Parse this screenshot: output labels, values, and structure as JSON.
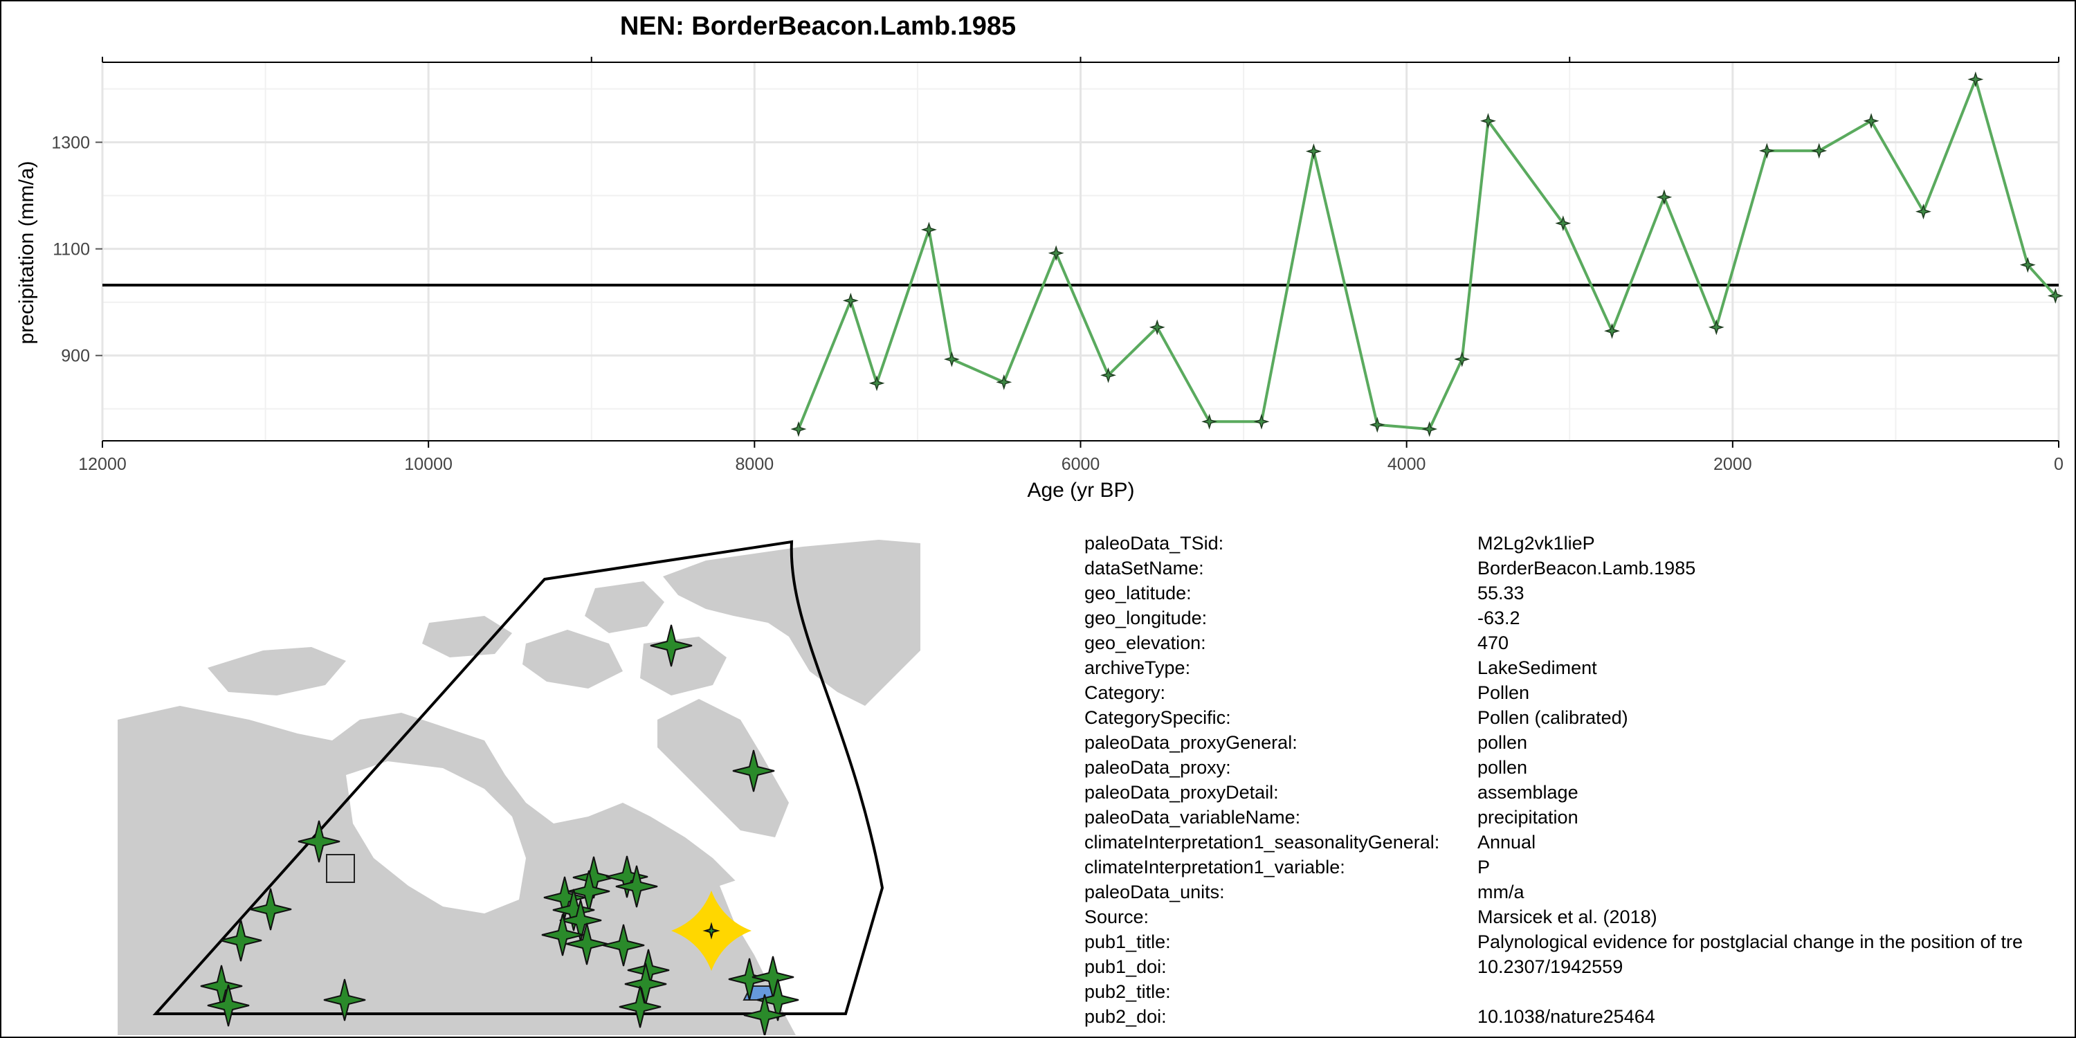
{
  "title": "NEN: BorderBeacon.Lamb.1985",
  "chart_data": {
    "type": "line",
    "title": "NEN: BorderBeacon.Lamb.1985",
    "xlabel": "Age (yr BP)",
    "ylabel": "precipitation (mm/a)",
    "xlim": [
      12000,
      0
    ],
    "x_reversed": true,
    "ylim": [
      740,
      1450
    ],
    "xticks": [
      "12000",
      "10000",
      "8000",
      "6000",
      "4000",
      "2000",
      "0"
    ],
    "xtick_values": [
      12000,
      10000,
      8000,
      6000,
      4000,
      2000,
      0
    ],
    "yticks": [
      "900",
      "1100",
      "1300"
    ],
    "ytick_values": [
      900,
      1100,
      1300
    ],
    "grid": true,
    "reference_line": 1032,
    "line_color": "#5aaa5e",
    "reference_color": "#000000",
    "series": [
      {
        "x": [
          7730,
          7410,
          7250,
          6930,
          6790,
          6470,
          6150,
          5830,
          5530,
          5210,
          4890,
          4570,
          4180,
          3860,
          3660,
          3500,
          3040,
          2740,
          2420,
          2100,
          1790,
          1470,
          1150,
          830,
          510,
          190,
          20
        ],
        "y": [
          762,
          1003,
          848,
          1136,
          893,
          850,
          1092,
          863,
          953,
          776,
          776,
          1283,
          770,
          762,
          893,
          1340,
          1148,
          946,
          1197,
          953,
          1284,
          1284,
          1340,
          1170,
          1418,
          1070,
          1012
        ]
      }
    ]
  },
  "map": {
    "land_color": "#cccccc",
    "marker_color": "#2a8a2a",
    "highlight_color": "#ffd700",
    "square_fill": "#cccccc",
    "blue_fill": "#6699dd"
  },
  "metadata": [
    {
      "key": "paleoData_TSid:",
      "value": "M2Lg2vk1lieP"
    },
    {
      "key": "dataSetName:",
      "value": "BorderBeacon.Lamb.1985"
    },
    {
      "key": "geo_latitude:",
      "value": "55.33"
    },
    {
      "key": "geo_longitude:",
      "value": "-63.2"
    },
    {
      "key": "geo_elevation:",
      "value": "470"
    },
    {
      "key": "archiveType:",
      "value": "LakeSediment"
    },
    {
      "key": "Category:",
      "value": "Pollen"
    },
    {
      "key": "CategorySpecific:",
      "value": "Pollen (calibrated)"
    },
    {
      "key": "paleoData_proxyGeneral:",
      "value": "pollen"
    },
    {
      "key": "paleoData_proxy:",
      "value": "pollen"
    },
    {
      "key": "paleoData_proxyDetail:",
      "value": "assemblage"
    },
    {
      "key": "paleoData_variableName:",
      "value": "precipitation"
    },
    {
      "key": "climateInterpretation1_seasonalityGeneral:",
      "value": "Annual"
    },
    {
      "key": "climateInterpretation1_variable:",
      "value": "P"
    },
    {
      "key": "paleoData_units:",
      "value": "mm/a"
    },
    {
      "key": "Source:",
      "value": "Marsicek et al. (2018)"
    },
    {
      "key": "pub1_title:",
      "value": "Palynological evidence for postglacial change in the position of tre"
    },
    {
      "key": "pub1_doi:",
      "value": "10.2307/1942559"
    },
    {
      "key": "pub2_title:",
      "value": ""
    },
    {
      "key": "pub2_doi:",
      "value": "10.1038/nature25464"
    }
  ]
}
